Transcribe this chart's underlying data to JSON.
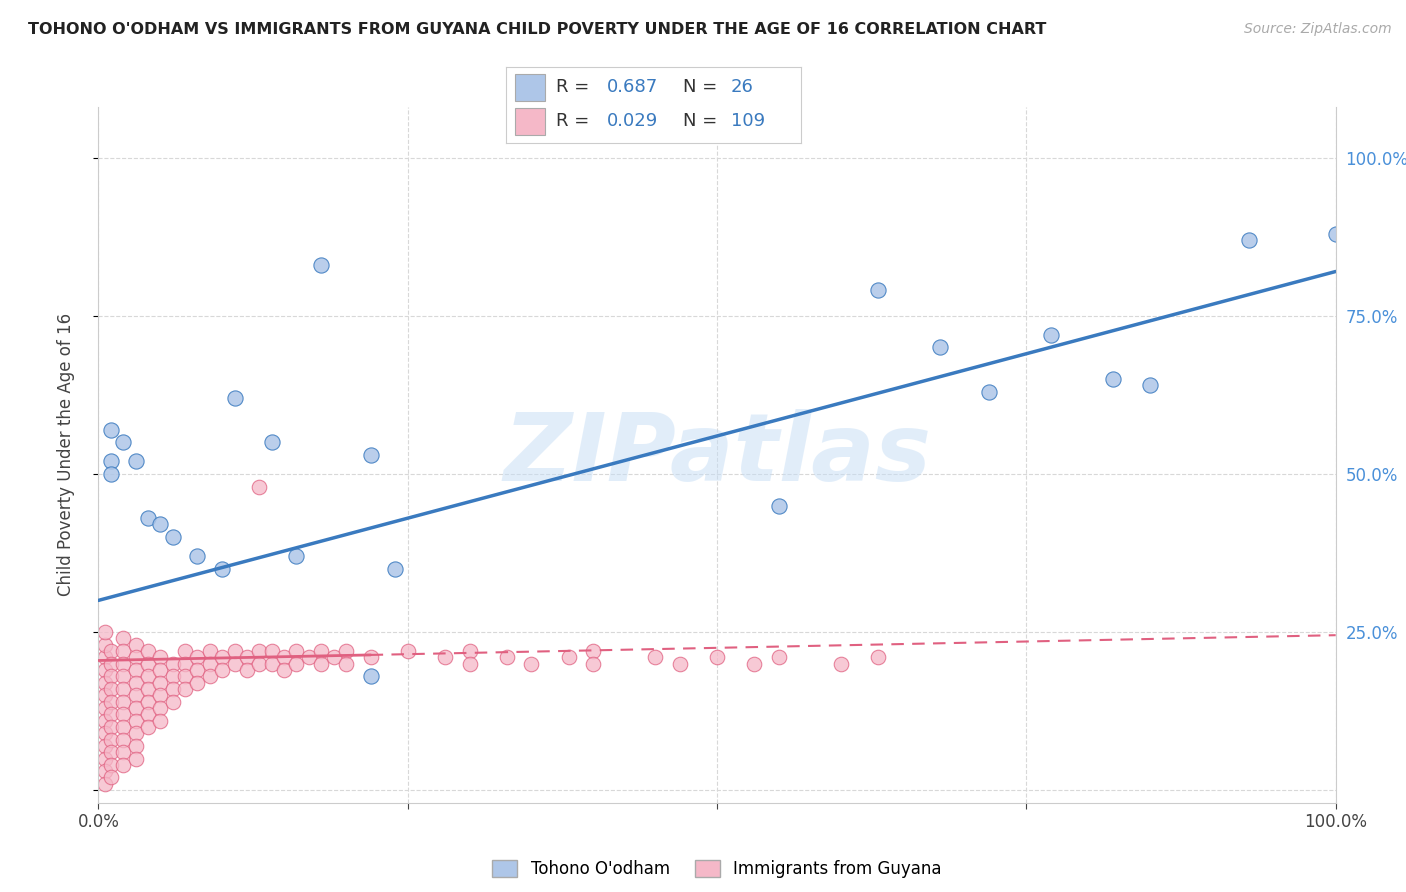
{
  "title": "TOHONO O'ODHAM VS IMMIGRANTS FROM GUYANA CHILD POVERTY UNDER THE AGE OF 16 CORRELATION CHART",
  "source": "Source: ZipAtlas.com",
  "ylabel": "Child Poverty Under the Age of 16",
  "watermark": "ZIPatlas",
  "blue_R": 0.687,
  "blue_N": 26,
  "pink_R": 0.029,
  "pink_N": 109,
  "blue_color": "#aec6e8",
  "pink_color": "#f5b8c8",
  "blue_line_color": "#3a7abf",
  "pink_line_color": "#e06080",
  "blue_scatter": [
    [
      0.01,
      0.57
    ],
    [
      0.01,
      0.52
    ],
    [
      0.01,
      0.5
    ],
    [
      0.02,
      0.55
    ],
    [
      0.03,
      0.52
    ],
    [
      0.04,
      0.43
    ],
    [
      0.05,
      0.42
    ],
    [
      0.06,
      0.4
    ],
    [
      0.08,
      0.37
    ],
    [
      0.1,
      0.35
    ],
    [
      0.11,
      0.62
    ],
    [
      0.14,
      0.55
    ],
    [
      0.16,
      0.37
    ],
    [
      0.18,
      0.83
    ],
    [
      0.22,
      0.53
    ],
    [
      0.24,
      0.35
    ],
    [
      0.22,
      0.18
    ],
    [
      0.55,
      0.45
    ],
    [
      0.63,
      0.79
    ],
    [
      0.68,
      0.7
    ],
    [
      0.72,
      0.63
    ],
    [
      0.77,
      0.72
    ],
    [
      0.82,
      0.65
    ],
    [
      0.85,
      0.64
    ],
    [
      0.93,
      0.87
    ],
    [
      1.0,
      0.88
    ]
  ],
  "pink_scatter": [
    [
      0.005,
      0.21
    ],
    [
      0.005,
      0.19
    ],
    [
      0.005,
      0.17
    ],
    [
      0.005,
      0.15
    ],
    [
      0.005,
      0.13
    ],
    [
      0.005,
      0.11
    ],
    [
      0.005,
      0.09
    ],
    [
      0.005,
      0.07
    ],
    [
      0.005,
      0.05
    ],
    [
      0.005,
      0.03
    ],
    [
      0.005,
      0.01
    ],
    [
      0.005,
      0.23
    ],
    [
      0.005,
      0.25
    ],
    [
      0.01,
      0.22
    ],
    [
      0.01,
      0.2
    ],
    [
      0.01,
      0.18
    ],
    [
      0.01,
      0.16
    ],
    [
      0.01,
      0.14
    ],
    [
      0.01,
      0.12
    ],
    [
      0.01,
      0.1
    ],
    [
      0.01,
      0.08
    ],
    [
      0.01,
      0.06
    ],
    [
      0.01,
      0.04
    ],
    [
      0.01,
      0.02
    ],
    [
      0.02,
      0.24
    ],
    [
      0.02,
      0.22
    ],
    [
      0.02,
      0.2
    ],
    [
      0.02,
      0.18
    ],
    [
      0.02,
      0.16
    ],
    [
      0.02,
      0.14
    ],
    [
      0.02,
      0.12
    ],
    [
      0.02,
      0.1
    ],
    [
      0.02,
      0.08
    ],
    [
      0.02,
      0.06
    ],
    [
      0.02,
      0.04
    ],
    [
      0.03,
      0.23
    ],
    [
      0.03,
      0.21
    ],
    [
      0.03,
      0.19
    ],
    [
      0.03,
      0.17
    ],
    [
      0.03,
      0.15
    ],
    [
      0.03,
      0.13
    ],
    [
      0.03,
      0.11
    ],
    [
      0.03,
      0.09
    ],
    [
      0.03,
      0.07
    ],
    [
      0.03,
      0.05
    ],
    [
      0.04,
      0.22
    ],
    [
      0.04,
      0.2
    ],
    [
      0.04,
      0.18
    ],
    [
      0.04,
      0.16
    ],
    [
      0.04,
      0.14
    ],
    [
      0.04,
      0.12
    ],
    [
      0.04,
      0.1
    ],
    [
      0.05,
      0.21
    ],
    [
      0.05,
      0.19
    ],
    [
      0.05,
      0.17
    ],
    [
      0.05,
      0.15
    ],
    [
      0.05,
      0.13
    ],
    [
      0.05,
      0.11
    ],
    [
      0.06,
      0.2
    ],
    [
      0.06,
      0.18
    ],
    [
      0.06,
      0.16
    ],
    [
      0.06,
      0.14
    ],
    [
      0.07,
      0.22
    ],
    [
      0.07,
      0.2
    ],
    [
      0.07,
      0.18
    ],
    [
      0.07,
      0.16
    ],
    [
      0.08,
      0.21
    ],
    [
      0.08,
      0.19
    ],
    [
      0.08,
      0.17
    ],
    [
      0.09,
      0.22
    ],
    [
      0.09,
      0.2
    ],
    [
      0.09,
      0.18
    ],
    [
      0.1,
      0.21
    ],
    [
      0.1,
      0.19
    ],
    [
      0.11,
      0.22
    ],
    [
      0.11,
      0.2
    ],
    [
      0.12,
      0.21
    ],
    [
      0.12,
      0.19
    ],
    [
      0.13,
      0.48
    ],
    [
      0.13,
      0.22
    ],
    [
      0.13,
      0.2
    ],
    [
      0.14,
      0.22
    ],
    [
      0.14,
      0.2
    ],
    [
      0.15,
      0.21
    ],
    [
      0.15,
      0.19
    ],
    [
      0.16,
      0.22
    ],
    [
      0.16,
      0.2
    ],
    [
      0.17,
      0.21
    ],
    [
      0.18,
      0.22
    ],
    [
      0.18,
      0.2
    ],
    [
      0.19,
      0.21
    ],
    [
      0.2,
      0.22
    ],
    [
      0.2,
      0.2
    ],
    [
      0.22,
      0.21
    ],
    [
      0.25,
      0.22
    ],
    [
      0.28,
      0.21
    ],
    [
      0.3,
      0.22
    ],
    [
      0.3,
      0.2
    ],
    [
      0.33,
      0.21
    ],
    [
      0.35,
      0.2
    ],
    [
      0.38,
      0.21
    ],
    [
      0.4,
      0.22
    ],
    [
      0.4,
      0.2
    ],
    [
      0.45,
      0.21
    ],
    [
      0.47,
      0.2
    ],
    [
      0.5,
      0.21
    ],
    [
      0.53,
      0.2
    ],
    [
      0.55,
      0.21
    ],
    [
      0.6,
      0.2
    ],
    [
      0.63,
      0.21
    ]
  ],
  "xlim": [
    0.0,
    1.0
  ],
  "ylim": [
    -0.02,
    1.08
  ],
  "xticks": [
    0.0,
    0.25,
    0.5,
    0.75,
    1.0
  ],
  "yticks": [
    0.0,
    0.25,
    0.5,
    0.75,
    1.0
  ],
  "xticklabels": [
    "0.0%",
    "",
    "",
    "",
    "100.0%"
  ],
  "right_yticklabels": [
    "",
    "25.0%",
    "50.0%",
    "75.0%",
    "100.0%"
  ],
  "grid_color": "#d8d8d8",
  "background_color": "#ffffff"
}
